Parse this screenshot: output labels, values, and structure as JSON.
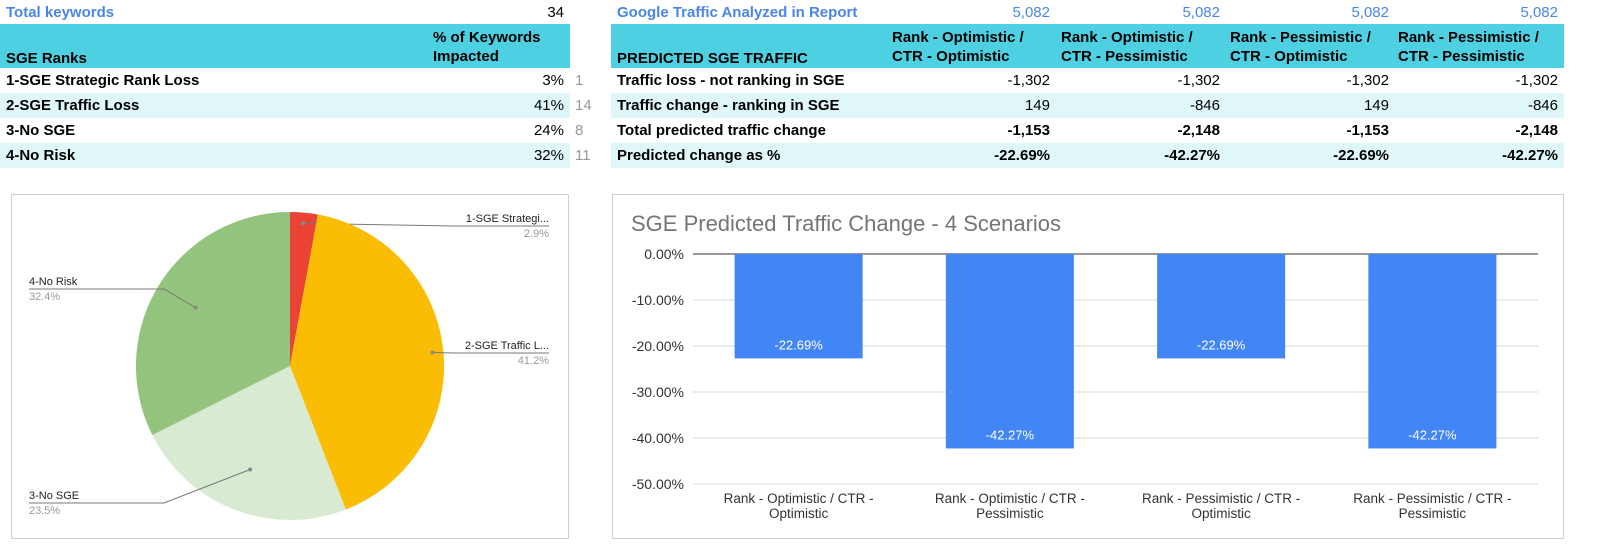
{
  "left_table": {
    "total_keywords_label": "Total keywords",
    "total_keywords_value": "34",
    "header_col1": "SGE Ranks",
    "header_col2": "% of Keywords Impacted",
    "rows": [
      {
        "label": "1-SGE Strategic Rank Loss",
        "pct": "3%",
        "count": "1"
      },
      {
        "label": "2-SGE Traffic Loss",
        "pct": "41%",
        "count": "14"
      },
      {
        "label": "3-No SGE",
        "pct": "24%",
        "count": "8"
      },
      {
        "label": "4-No Risk",
        "pct": "32%",
        "count": "11"
      }
    ]
  },
  "right_table": {
    "analyzed_label": "Google Traffic Analyzed in Report",
    "analyzed_values": [
      "5,082",
      "5,082",
      "5,082",
      "5,082"
    ],
    "header_col1": "PREDICTED SGE TRAFFIC",
    "headers": [
      "Rank - Optimistic / CTR - Optimistic",
      "Rank - Optimistic / CTR - Pessimistic",
      "Rank - Pessimistic / CTR - Optimistic",
      "Rank - Pessimistic / CTR - Pessimistic"
    ],
    "rows": [
      {
        "label": "Traffic loss - not ranking in SGE",
        "values": [
          "-1,302",
          "-1,302",
          "-1,302",
          "-1,302"
        ],
        "bold": false
      },
      {
        "label": "Traffic change - ranking in SGE",
        "values": [
          "149",
          "-846",
          "149",
          "-846"
        ],
        "bold": false
      },
      {
        "label": "Total predicted traffic change",
        "values": [
          "-1,153",
          "-2,148",
          "-1,153",
          "-2,148"
        ],
        "bold": true
      },
      {
        "label": "Predicted change as %",
        "values": [
          "-22.69%",
          "-42.27%",
          "-22.69%",
          "-42.27%"
        ],
        "bold": true
      }
    ]
  },
  "chart_data": [
    {
      "type": "pie",
      "title": "",
      "slices": [
        {
          "label": "1-SGE Strategi...",
          "value": 2.9,
          "pct_label": "2.9%",
          "color": "#ea4335"
        },
        {
          "label": "2-SGE Traffic L...",
          "value": 41.2,
          "pct_label": "41.2%",
          "color": "#fbbc04"
        },
        {
          "label": "3-No SGE",
          "value": 23.5,
          "pct_label": "23.5%",
          "color": "#d9ead3"
        },
        {
          "label": "4-No Risk",
          "value": 32.4,
          "pct_label": "32.4%",
          "color": "#93c47d"
        }
      ]
    },
    {
      "type": "bar",
      "title": "SGE Predicted Traffic Change - 4 Scenarios",
      "categories": [
        [
          "Rank - Optimistic / CTR -",
          "Optimistic"
        ],
        [
          "Rank - Optimistic / CTR -",
          "Pessimistic"
        ],
        [
          "Rank - Pessimistic / CTR -",
          "Optimistic"
        ],
        [
          "Rank - Pessimistic / CTR -",
          "Pessimistic"
        ]
      ],
      "values": [
        -22.69,
        -42.27,
        -22.69,
        -42.27
      ],
      "data_labels": [
        "-22.69%",
        "-42.27%",
        "-22.69%",
        "-42.27%"
      ],
      "ylim": [
        -50,
        0
      ],
      "yticks": [
        0,
        -10,
        -20,
        -30,
        -40,
        -50
      ],
      "ytick_labels": [
        "0.00%",
        "-10.00%",
        "-20.00%",
        "-30.00%",
        "-40.00%",
        "-50.00%"
      ],
      "bar_color": "#4285f4",
      "grid": true
    }
  ]
}
